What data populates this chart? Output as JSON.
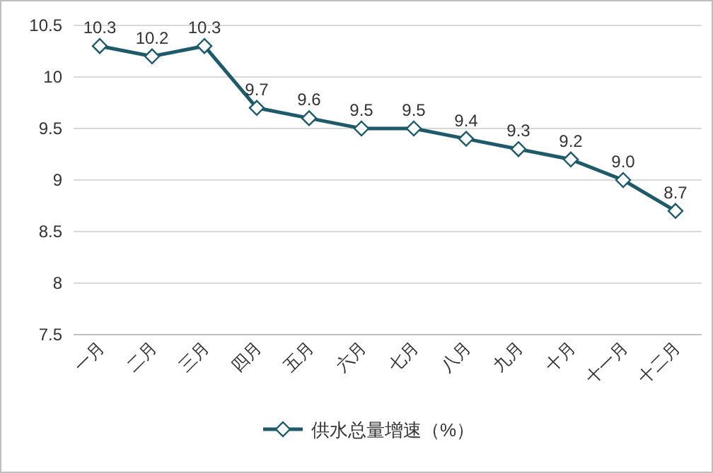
{
  "chart_data": {
    "type": "line",
    "categories": [
      "一月",
      "二月",
      "三月",
      "四月",
      "五月",
      "六月",
      "七月",
      "八月",
      "九月",
      "十月",
      "十一月",
      "十二月"
    ],
    "series": [
      {
        "name": "供水总量增速（%）",
        "color": "#1f5a6b",
        "values": [
          10.3,
          10.2,
          10.3,
          9.7,
          9.6,
          9.5,
          9.5,
          9.4,
          9.3,
          9.2,
          9.0,
          8.7
        ],
        "value_labels": [
          "10.3",
          "10.2",
          "10.3",
          "9.7",
          "9.6",
          "9.5",
          "9.5",
          "9.4",
          "9.3",
          "9.2",
          "9.0",
          "8.7"
        ]
      }
    ],
    "ylim": [
      7.5,
      10.5
    ],
    "yticks": [
      7.5,
      8,
      8.5,
      9,
      9.5,
      10,
      10.5
    ],
    "grid": "y",
    "legend": "bottom",
    "marker": "diamond",
    "line_style": "solid"
  }
}
